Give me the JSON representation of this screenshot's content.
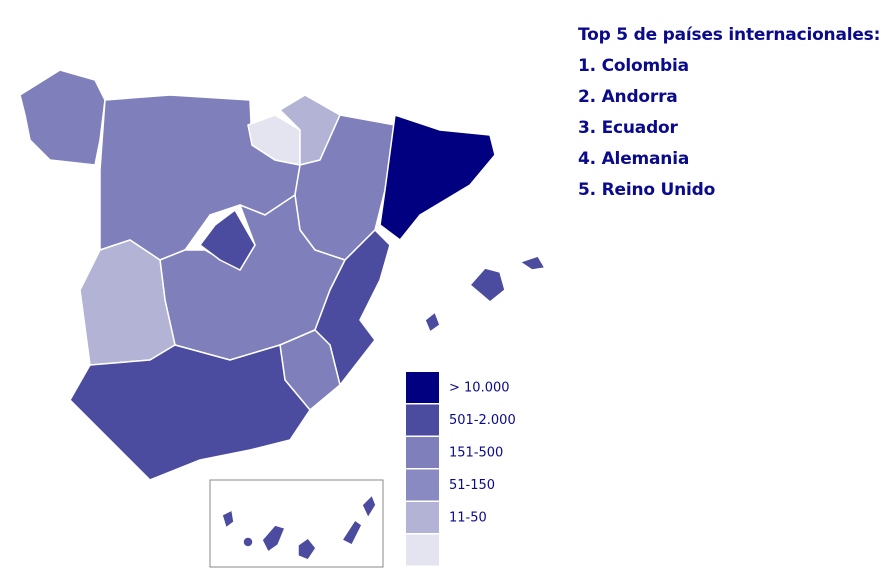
{
  "top": {
    "title": "Top 5 de países internacionales:",
    "items": [
      "1. Colombia",
      "2. Andorra",
      "3. Ecuador",
      "4. Alemania",
      "5. Reino Unido"
    ]
  },
  "legend": [
    {
      "color": "#000080",
      "label": "> 10.000"
    },
    {
      "color": "#4b4b9f",
      "label": "501-2.000"
    },
    {
      "color": "#7f7fbb",
      "label": "151-500"
    },
    {
      "color": "#8a8ac2",
      "label": "51-150"
    },
    {
      "color": "#b3b3d6",
      "label": "11-50"
    },
    {
      "color": "#e4e4f0"
    }
  ]
}
